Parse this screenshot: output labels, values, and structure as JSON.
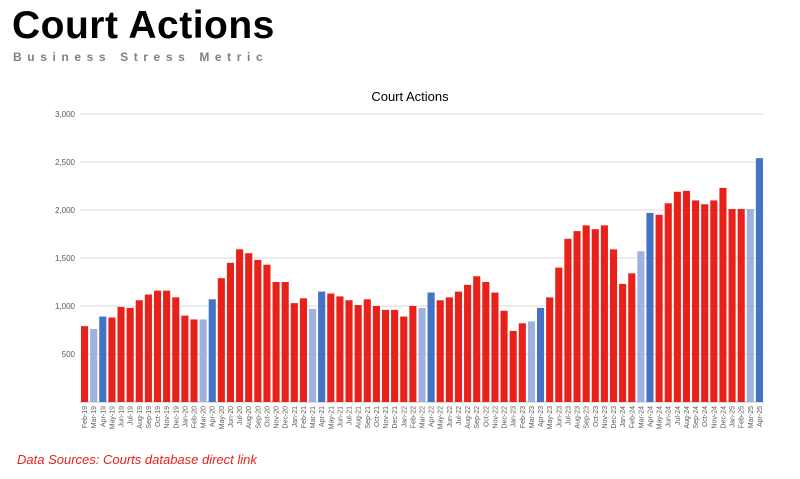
{
  "header": {
    "title": "Court Actions",
    "subtitle": "Business Stress Metric"
  },
  "footer": {
    "source_note": "Data Sources: Courts database direct link"
  },
  "colors": {
    "red": "#e8221b",
    "blue": "#4472c4",
    "light_blue": "#9fb2df",
    "grid": "#d9d9d9",
    "axis_text": "#595959"
  },
  "chart_data": {
    "type": "bar",
    "title": "Court Actions",
    "xlabel": "",
    "ylabel": "",
    "ylim": [
      0,
      3000
    ],
    "yticks": [
      0,
      500,
      1000,
      1500,
      2000,
      2500,
      3000
    ],
    "ytick_labels": [
      "",
      "500",
      "1,000",
      "1,500",
      "2,000",
      "2,500",
      "3,000"
    ],
    "grid": true,
    "legend": "none",
    "categories": [
      "Feb-19",
      "Mar-19",
      "Apr-19",
      "May-19",
      "Jun-19",
      "Jul-19",
      "Aug-19",
      "Sep-19",
      "Oct-19",
      "Nov-19",
      "Dec-19",
      "Jan-20",
      "Feb-20",
      "Mar-20",
      "Apr-20",
      "May-20",
      "Jun-20",
      "Jul-20",
      "Aug-20",
      "Sep-20",
      "Oct-20",
      "Nov-20",
      "Dec-20",
      "Jan-21",
      "Feb-21",
      "Mar-21",
      "Apr-21",
      "May-21",
      "Jun-21",
      "Jul-21",
      "Aug-21",
      "Sep-21",
      "Oct-21",
      "Nov-21",
      "Dec-21",
      "Jan-22",
      "Feb-22",
      "Mar-22",
      "Apr-22",
      "May-22",
      "Jun-22",
      "Jul-22",
      "Aug-22",
      "Sep-22",
      "Oct-22",
      "Nov-22",
      "Dec-22",
      "Jan-23",
      "Feb-23",
      "Mar-23",
      "Apr-23",
      "May-23",
      "Jun-23",
      "Jul-23",
      "Aug-23",
      "Sep-23",
      "Oct-23",
      "Nov-23",
      "Dec-23",
      "Jan-24",
      "Feb-24",
      "Mar-24",
      "Apr-24",
      "May-24",
      "Jun-24",
      "Jul-24",
      "Aug-24",
      "Sep-24",
      "Oct-24",
      "Nov-24",
      "Dec-24",
      "Jan-25",
      "Feb-25",
      "Mar-25",
      "Apr-25"
    ],
    "values": [
      790,
      760,
      890,
      880,
      990,
      980,
      1060,
      1120,
      1160,
      1160,
      1090,
      900,
      860,
      860,
      1070,
      1290,
      1450,
      1590,
      1550,
      1480,
      1430,
      1250,
      1250,
      1030,
      1080,
      970,
      1150,
      1130,
      1100,
      1060,
      1010,
      1070,
      1000,
      960,
      960,
      890,
      1000,
      980,
      1140,
      1060,
      1090,
      1150,
      1220,
      1310,
      1250,
      1140,
      950,
      740,
      820,
      840,
      980,
      1090,
      1400,
      1700,
      1780,
      1840,
      1800,
      1840,
      1590,
      1230,
      1340,
      1570,
      1970,
      1950,
      2070,
      2190,
      2200,
      2100,
      2060,
      2100,
      2230,
      2010,
      2010,
      2010,
      2540
    ],
    "bar_colors": [
      "red",
      "light_blue",
      "blue",
      "red",
      "red",
      "red",
      "red",
      "red",
      "red",
      "red",
      "red",
      "red",
      "red",
      "light_blue",
      "blue",
      "red",
      "red",
      "red",
      "red",
      "red",
      "red",
      "red",
      "red",
      "red",
      "red",
      "light_blue",
      "blue",
      "red",
      "red",
      "red",
      "red",
      "red",
      "red",
      "red",
      "red",
      "red",
      "red",
      "light_blue",
      "blue",
      "red",
      "red",
      "red",
      "red",
      "red",
      "red",
      "red",
      "red",
      "red",
      "red",
      "light_blue",
      "blue",
      "red",
      "red",
      "red",
      "red",
      "red",
      "red",
      "red",
      "red",
      "red",
      "red",
      "light_blue",
      "blue",
      "red",
      "red",
      "red",
      "red",
      "red",
      "red",
      "red",
      "red",
      "red",
      "red",
      "light_blue",
      "blue"
    ]
  }
}
